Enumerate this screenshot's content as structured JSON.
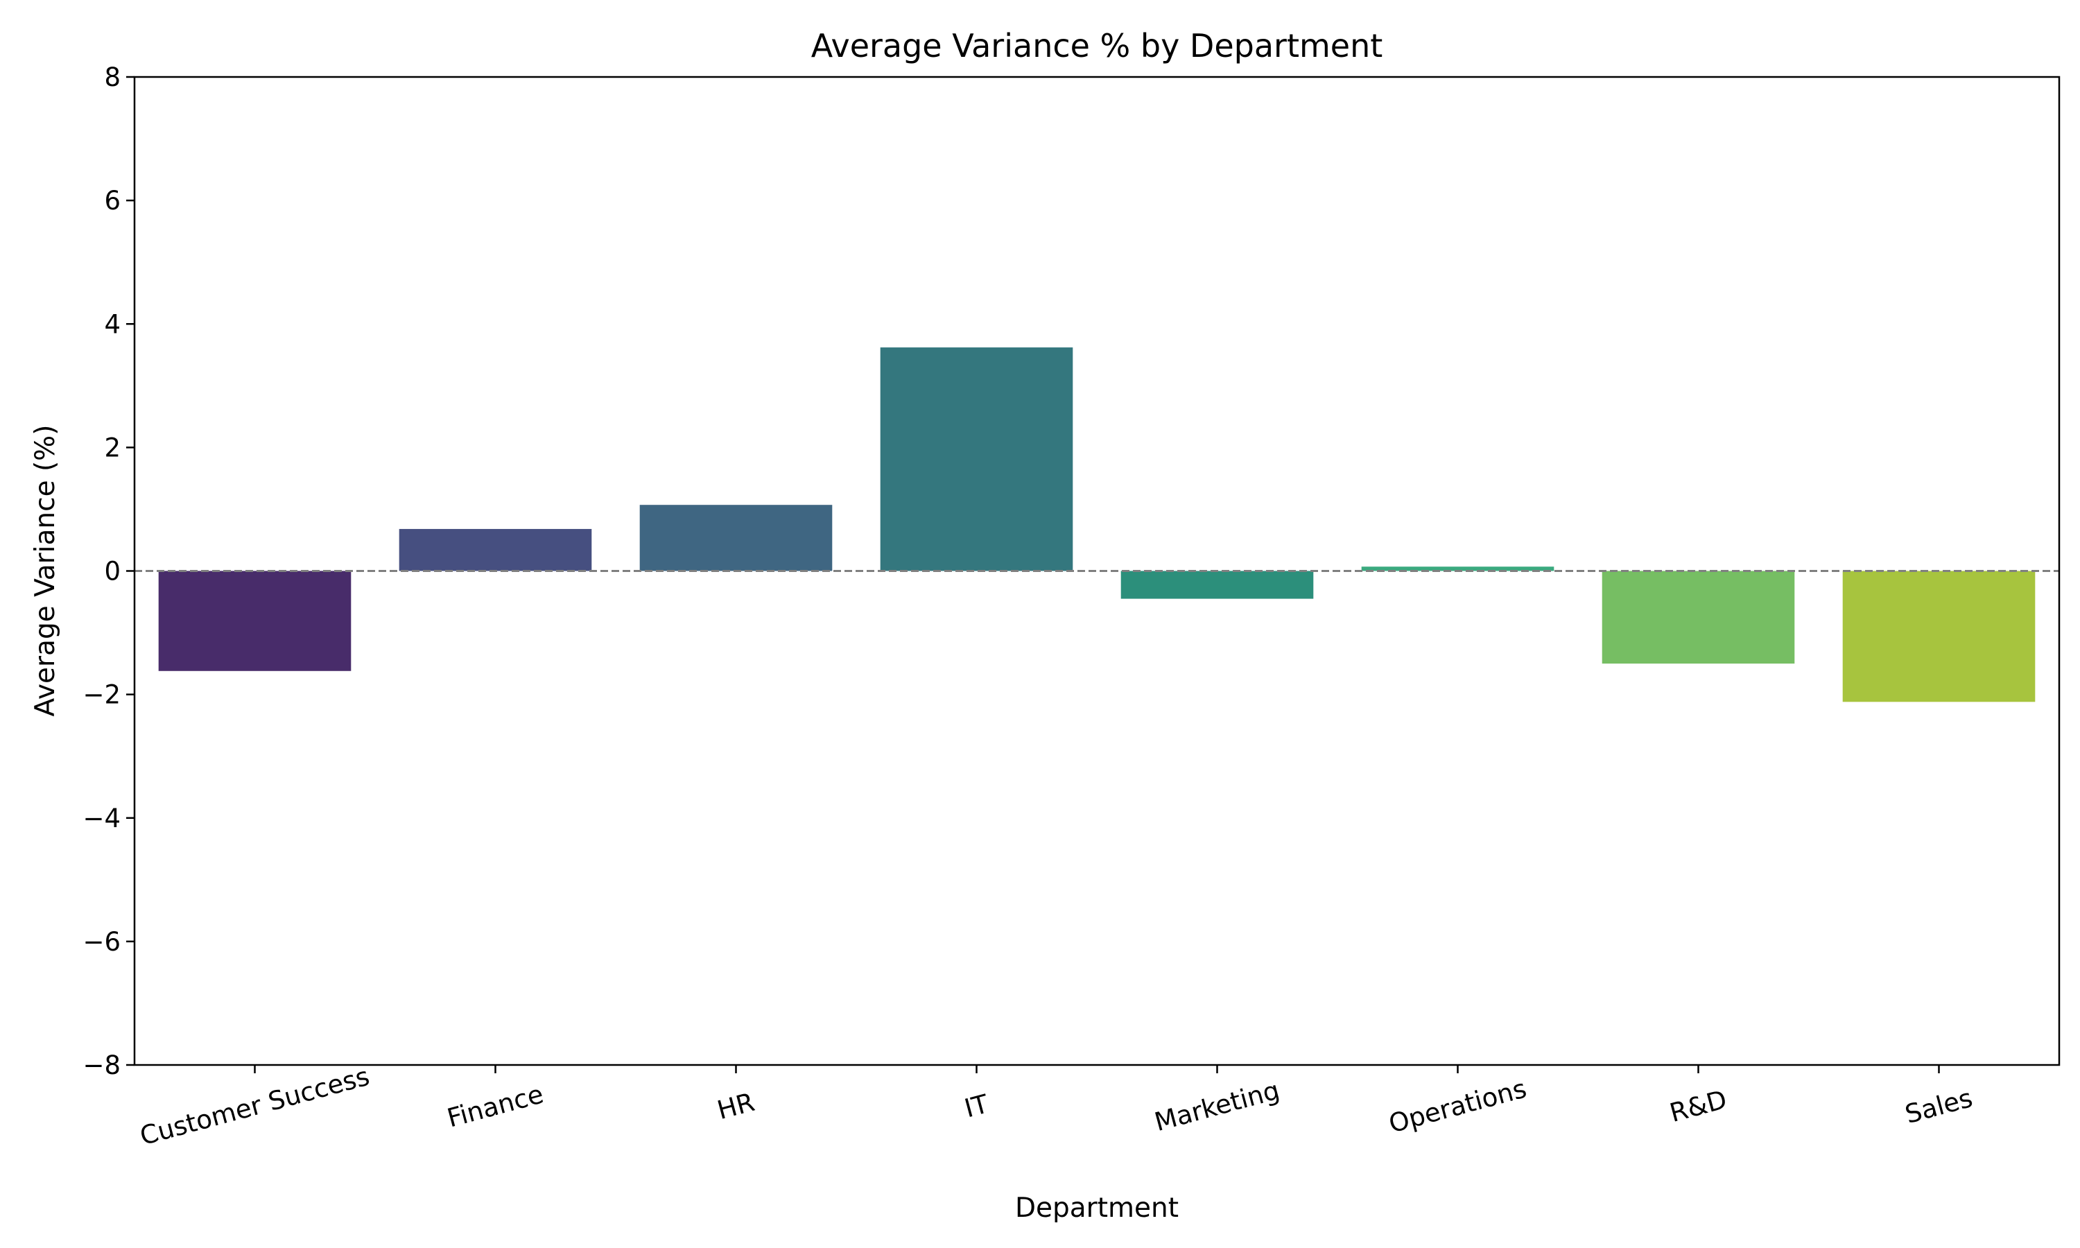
{
  "chart_data": {
    "type": "bar",
    "title": "Average Variance % by Department",
    "xlabel": "Department",
    "ylabel": "Average Variance (%)",
    "categories": [
      "Customer Success",
      "Finance",
      "HR",
      "IT",
      "Marketing",
      "Operations",
      "R&D",
      "Sales"
    ],
    "values": [
      -1.62,
      0.68,
      1.07,
      3.62,
      -0.45,
      0.07,
      -1.5,
      -2.12
    ],
    "colors": [
      "#482c6a",
      "#464f80",
      "#3f6682",
      "#34777e",
      "#2c8f7b",
      "#3aaa7f",
      "#76be63",
      "#a7c43e"
    ],
    "ylim": [
      -8,
      8
    ],
    "yticks": [
      -8,
      -6,
      -4,
      -2,
      0,
      2,
      4,
      6,
      8
    ],
    "ytick_labels": [
      "−8",
      "−6",
      "−4",
      "−2",
      "0",
      "2",
      "4",
      "6",
      "8"
    ],
    "reference_line": {
      "y": 0,
      "style": "dashed",
      "color": "#808080"
    },
    "grid": false,
    "legend": "none"
  }
}
